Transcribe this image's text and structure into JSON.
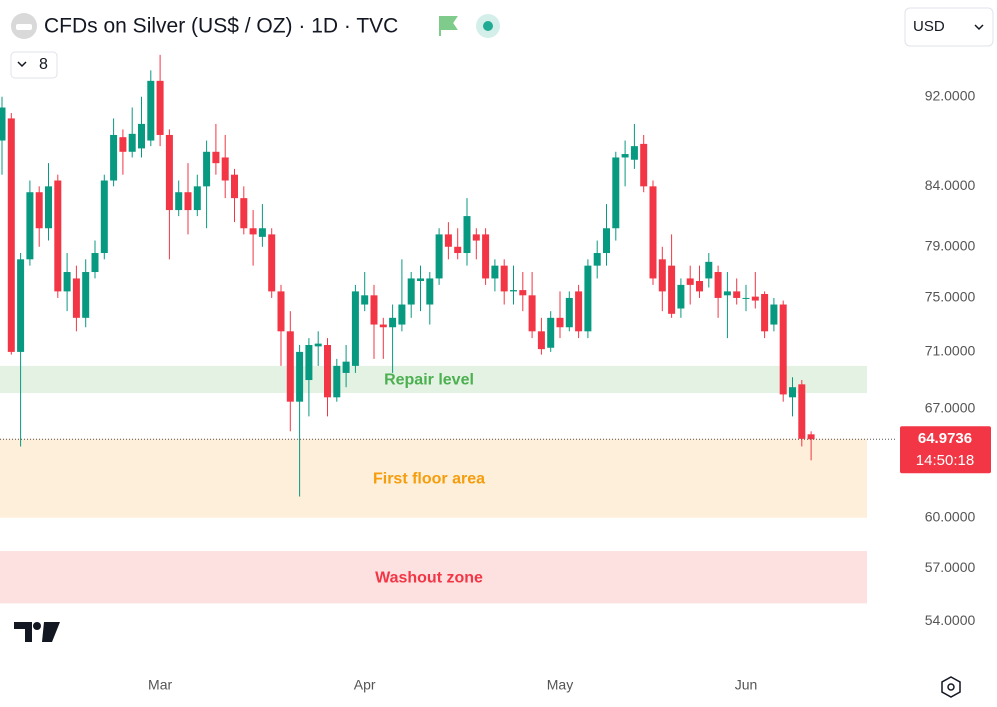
{
  "header": {
    "title": "CFDs on Silver (US$ / OZ) · 1D · TVC",
    "currency": "USD",
    "indicator_count": "8"
  },
  "chart_data": {
    "type": "candlestick",
    "log_scale": true,
    "up_color": "#089981",
    "down_color": "#f23645",
    "categories": [
      null,
      null,
      null,
      null,
      null,
      null,
      null,
      null,
      null,
      null,
      null,
      null,
      null,
      null,
      null,
      null,
      null,
      "Mar",
      null,
      null,
      null,
      null,
      null,
      null,
      null,
      null,
      null,
      null,
      null,
      null,
      null,
      null,
      null,
      null,
      null,
      null,
      null,
      null,
      null,
      "Apr",
      null,
      null,
      null,
      null,
      null,
      null,
      null,
      null,
      null,
      null,
      null,
      null,
      null,
      null,
      null,
      null,
      null,
      null,
      null,
      null,
      "May",
      null,
      null,
      null,
      null,
      null,
      null,
      null,
      null,
      null,
      null,
      null,
      null,
      null,
      null,
      null,
      null,
      null,
      null,
      null,
      "Jun",
      null,
      null,
      null,
      null,
      null,
      null,
      null
    ],
    "open": [
      88,
      90,
      71,
      78,
      83.5,
      80.5,
      84.5,
      75.5,
      76.5,
      73.5,
      77,
      78.5,
      84.5,
      88.3,
      87,
      87.3,
      88,
      93.5,
      88.5,
      82,
      83.5,
      82,
      84,
      87,
      86.5,
      85,
      83,
      80.5,
      79.8,
      80,
      75.5,
      72.5,
      67.5,
      69,
      71.4,
      71.5,
      67.8,
      69.5,
      70,
      74.5,
      75.2,
      73,
      72.8,
      73,
      74.5,
      76.3,
      74.5,
      76.5,
      80,
      79,
      78.5,
      80,
      80,
      76.5,
      77.5,
      75.5,
      75.6,
      75.2,
      72.5,
      71.3,
      73.5,
      72.8,
      75.5,
      72.5,
      77.5,
      78.5,
      80.5,
      86.5,
      86.3,
      87.7,
      84,
      78,
      77.5,
      74.2,
      76.5,
      76.3,
      76.5,
      77,
      75.2,
      75.5,
      75,
      75.1,
      75.3,
      73,
      74.5,
      67.8,
      68.7,
      65.3
    ],
    "high": [
      92,
      90.5,
      78.5,
      84.5,
      84,
      86,
      85,
      78.5,
      77.5,
      78,
      79.5,
      85,
      90,
      89,
      91,
      92,
      94.5,
      96,
      89,
      84.5,
      86,
      85,
      88,
      89.5,
      88.5,
      85.5,
      84,
      82,
      82.5,
      80.5,
      76,
      74,
      71.5,
      72,
      72.5,
      72,
      70.5,
      71.5,
      76,
      77,
      76,
      73.5,
      74.5,
      78,
      77,
      77.5,
      77,
      80.5,
      81,
      80.5,
      83,
      80.5,
      80.5,
      78,
      78,
      77.5,
      77,
      77,
      73.5,
      74,
      75.5,
      75.5,
      76,
      78,
      79.5,
      82.5,
      87,
      88,
      89.5,
      88.5,
      84.5,
      79,
      80,
      76.5,
      77.5,
      77.5,
      78.5,
      77.5,
      77,
      76.5,
      76,
      77,
      75.5,
      75,
      74.8,
      69.2,
      69,
      65.5
    ],
    "low": [
      85,
      70.8,
      64.5,
      77.5,
      79,
      79.5,
      75,
      74,
      72.5,
      72.8,
      76.5,
      78,
      84,
      85,
      86.5,
      86.5,
      87.5,
      87.5,
      78,
      81.5,
      80,
      81.5,
      80.5,
      85,
      83,
      81,
      80,
      77.5,
      79,
      75,
      70,
      65.5,
      61.3,
      66.5,
      70,
      66.5,
      67.5,
      68.5,
      69.5,
      74,
      70.5,
      70.5,
      69.5,
      72.5,
      73.5,
      74,
      73,
      76,
      78,
      78,
      77.5,
      78,
      76,
      75.5,
      74.5,
      74.5,
      74,
      72,
      70.8,
      71,
      72,
      72.5,
      72,
      72,
      76.5,
      77.5,
      79.5,
      84,
      85.5,
      83.5,
      76,
      74,
      73.5,
      73.5,
      74.5,
      75,
      75.8,
      73.5,
      72,
      74.5,
      74,
      74.2,
      72,
      72.5,
      67.5,
      66.5,
      64.5,
      63.6
    ],
    "close": [
      91,
      71,
      78,
      83.5,
      80.5,
      84,
      75.5,
      77,
      73.5,
      77,
      78.5,
      84.5,
      88.5,
      87,
      88.6,
      89.5,
      93.5,
      88.5,
      82,
      83.5,
      82,
      84,
      87,
      86,
      84.5,
      83,
      80.5,
      80,
      80.5,
      75.5,
      72.5,
      67.5,
      71,
      71.5,
      71.6,
      67.8,
      70,
      70.3,
      75.5,
      75.2,
      73,
      72.8,
      73.5,
      74.5,
      76.5,
      76.5,
      76.5,
      80,
      79,
      78.5,
      81.5,
      79.5,
      76.5,
      77.5,
      75.5,
      75.6,
      75.2,
      72.5,
      71.2,
      73.5,
      72.8,
      75,
      72.5,
      77.5,
      78.5,
      80.5,
      86.5,
      86.8,
      87.5,
      84,
      76.5,
      75.5,
      73.8,
      76,
      76,
      75.5,
      77.8,
      75,
      75.5,
      75,
      75,
      74.8,
      72.5,
      74.5,
      68,
      68.5,
      65,
      64.9736
    ],
    "ylim": [
      51.4,
      101.5
    ],
    "yticks": [
      {
        "value": 54,
        "label": "54.0000"
      },
      {
        "value": 57,
        "label": "57.0000"
      },
      {
        "value": 60,
        "label": "60.0000"
      },
      {
        "value": 67,
        "label": "67.0000"
      },
      {
        "value": 71,
        "label": "71.0000"
      },
      {
        "value": 75,
        "label": "75.0000"
      },
      {
        "value": 79,
        "label": "79.0000"
      },
      {
        "value": 84,
        "label": "84.0000"
      },
      {
        "value": 92,
        "label": "92.0000"
      }
    ],
    "last_price": {
      "value": 64.9736,
      "label": "64.9736",
      "countdown": "14:50:18",
      "color": "#f23645"
    },
    "zones": [
      {
        "label": "Repair level",
        "low": 68.1,
        "high": 70,
        "fill": "#e3f2e3",
        "color": "#4caf50"
      },
      {
        "label": "First floor area",
        "low": 60,
        "high": 65,
        "fill": "#fdefd9",
        "color": "#f59d0c"
      },
      {
        "label": "Washout zone",
        "low": 55,
        "high": 58,
        "fill": "#fde1e1",
        "color": "#f23645"
      }
    ]
  }
}
